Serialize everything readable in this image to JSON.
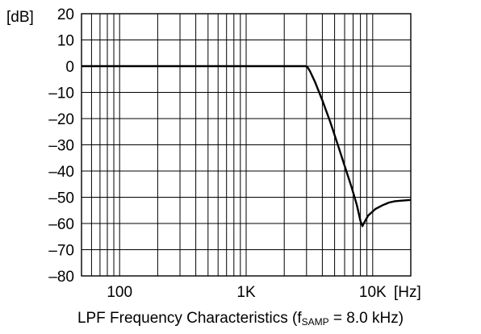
{
  "chart_data": {
    "type": "line",
    "title": "LPF Frequency Characteristics",
    "caption": {
      "prefix": "LPF Frequency Characteristics (f",
      "subscript": "SAMP",
      "suffix": " = 8.0 kHz)"
    },
    "xscale": "log",
    "xlim": [
      50,
      20000
    ],
    "ylim": [
      -80,
      20
    ],
    "x_unit": "[Hz]",
    "y_unit": "[dB]",
    "x_ticks": [
      {
        "value": 100,
        "label": "100"
      },
      {
        "value": 1000,
        "label": "1K"
      },
      {
        "value": 10000,
        "label": "10K"
      }
    ],
    "y_ticks": [
      {
        "value": 20,
        "label": "20"
      },
      {
        "value": 10,
        "label": "10"
      },
      {
        "value": 0,
        "label": "0"
      },
      {
        "value": -10,
        "label": "–10"
      },
      {
        "value": -20,
        "label": "–20"
      },
      {
        "value": -30,
        "label": "–30"
      },
      {
        "value": -40,
        "label": "–40"
      },
      {
        "value": -50,
        "label": "–50"
      },
      {
        "value": -60,
        "label": "–60"
      },
      {
        "value": -70,
        "label": "–70"
      },
      {
        "value": -80,
        "label": "–80"
      }
    ],
    "grid": true,
    "series": [
      {
        "x": [
          50,
          1000,
          2950,
          3050,
          3200,
          3500,
          4000,
          4600,
          5300,
          6000,
          6800,
          7500,
          8000,
          8300,
          8500,
          9200,
          10500,
          12000,
          13500,
          15000,
          17000,
          20000
        ],
        "y": [
          0,
          0,
          0,
          -0.3,
          -2,
          -6,
          -13,
          -21,
          -30,
          -38,
          -46,
          -53,
          -59,
          -61,
          -60,
          -57,
          -54.5,
          -53,
          -52,
          -51.5,
          -51.3,
          -51
        ]
      }
    ],
    "colors": {
      "line": "#000000",
      "grid": "#000000",
      "background": "#ffffff"
    }
  }
}
